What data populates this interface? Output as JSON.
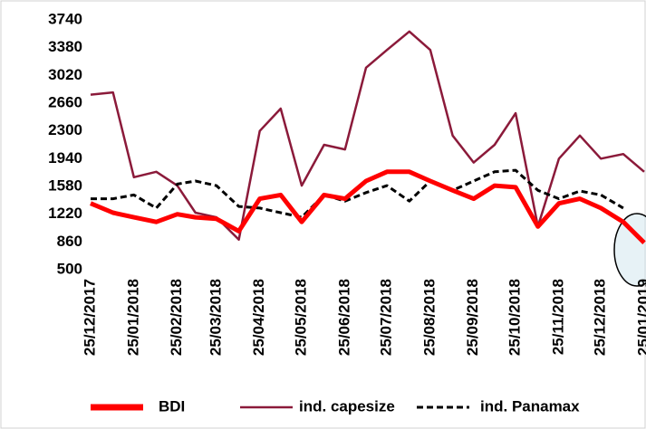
{
  "chart_data": {
    "type": "line",
    "x": [
      "25/12/2017",
      "10/01/2018",
      "25/01/2018",
      "10/02/2018",
      "25/02/2018",
      "10/03/2018",
      "25/03/2018",
      "10/04/2018",
      "25/04/2018",
      "10/05/2018",
      "25/05/2018",
      "10/06/2018",
      "25/06/2018",
      "10/07/2018",
      "25/07/2018",
      "10/08/2018",
      "25/08/2018",
      "10/09/2018",
      "25/09/2018",
      "10/10/2018",
      "25/10/2018",
      "10/11/2018",
      "25/11/2018",
      "10/12/2018",
      "25/12/2018",
      "10/01/2019",
      "25/01/2019"
    ],
    "series": [
      {
        "name": "BDI",
        "color": "#ff0000",
        "values": [
          1360,
          1240,
          1180,
          1120,
          1220,
          1180,
          1160,
          1000,
          1420,
          1470,
          1120,
          1470,
          1420,
          1650,
          1770,
          1770,
          1650,
          1530,
          1420,
          1590,
          1570,
          1060,
          1360,
          1420,
          1300,
          1120,
          850
        ]
      },
      {
        "name": "ind. capesize",
        "color": "#8b1a3a",
        "values": [
          2770,
          2800,
          1700,
          1770,
          1590,
          1240,
          1180,
          890,
          2300,
          2590,
          1590,
          2120,
          2060,
          3120,
          3350,
          3590,
          3350,
          2240,
          1890,
          2120,
          2530,
          1060,
          1940,
          2240,
          1940,
          2000,
          1770
        ]
      },
      {
        "name": "ind. Panamax",
        "color": "#000000",
        "dashed": true,
        "values": [
          1420,
          1420,
          1470,
          1300,
          1610,
          1650,
          1590,
          1320,
          1300,
          1240,
          1180,
          1470,
          1390,
          1500,
          1590,
          1390,
          1650,
          1530,
          1650,
          1770,
          1790,
          1530,
          1420,
          1520,
          1470,
          1300,
          null
        ]
      }
    ],
    "ylim": [
      500,
      3740
    ],
    "yticks": [
      500,
      860,
      1220,
      1580,
      1940,
      2300,
      2660,
      3020,
      3380,
      3740
    ],
    "xticks": [
      "25/12/2017",
      "25/01/2018",
      "25/02/2018",
      "25/03/2018",
      "25/04/2018",
      "25/05/2018",
      "25/06/2018",
      "25/07/2018",
      "25/08/2018",
      "25/09/2018",
      "25/10/2018",
      "25/11/2018",
      "25/12/2018",
      "25/01/2019"
    ]
  }
}
